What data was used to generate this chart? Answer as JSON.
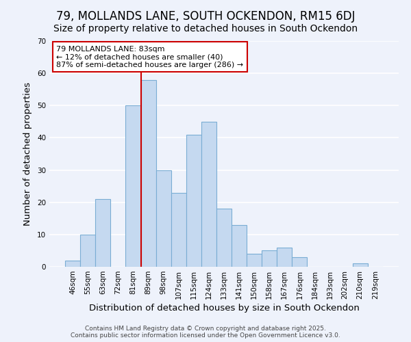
{
  "title": "79, MOLLANDS LANE, SOUTH OCKENDON, RM15 6DJ",
  "subtitle": "Size of property relative to detached houses in South Ockendon",
  "xlabel": "Distribution of detached houses by size in South Ockendon",
  "ylabel": "Number of detached properties",
  "categories": [
    "46sqm",
    "55sqm",
    "63sqm",
    "72sqm",
    "81sqm",
    "89sqm",
    "98sqm",
    "107sqm",
    "115sqm",
    "124sqm",
    "133sqm",
    "141sqm",
    "150sqm",
    "158sqm",
    "167sqm",
    "176sqm",
    "184sqm",
    "193sqm",
    "202sqm",
    "210sqm",
    "219sqm"
  ],
  "values": [
    2,
    10,
    21,
    0,
    50,
    58,
    30,
    23,
    41,
    45,
    18,
    13,
    4,
    5,
    6,
    3,
    0,
    0,
    0,
    1,
    0
  ],
  "bar_color": "#c5d9f0",
  "bar_edge_color": "#7aadd4",
  "vline_color": "#cc0000",
  "annotation_text": "79 MOLLANDS LANE: 83sqm\n← 12% of detached houses are smaller (40)\n87% of semi-detached houses are larger (286) →",
  "annotation_box_color": "#ffffff",
  "annotation_box_edge_color": "#cc0000",
  "ylim": [
    0,
    70
  ],
  "yticks": [
    0,
    10,
    20,
    30,
    40,
    50,
    60,
    70
  ],
  "footer1": "Contains HM Land Registry data © Crown copyright and database right 2025.",
  "footer2": "Contains public sector information licensed under the Open Government Licence v3.0.",
  "bg_color": "#eef2fb",
  "grid_color": "#ffffff",
  "title_fontsize": 12,
  "subtitle_fontsize": 10,
  "label_fontsize": 9.5,
  "tick_fontsize": 7.5,
  "annotation_fontsize": 8,
  "footer_fontsize": 6.5
}
